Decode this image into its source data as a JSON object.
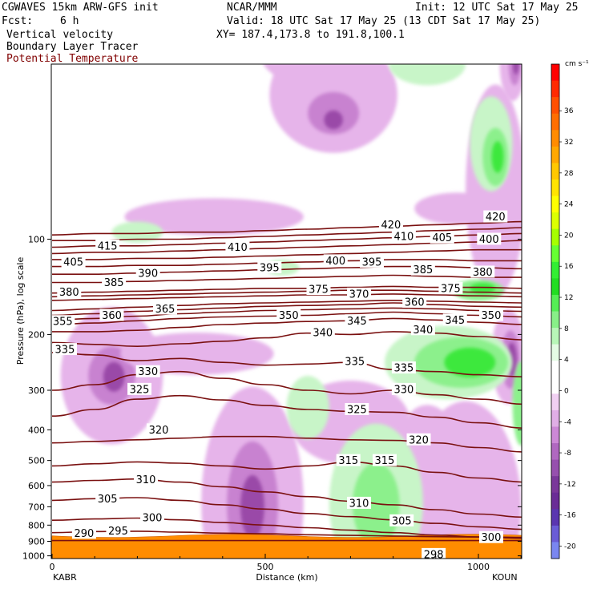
{
  "header": {
    "model": "CGWAVES 15km ARW-GFS init",
    "org": "NCAR/MMM",
    "init": "Init: 12 UTC Sat 17 May 25",
    "fcst_label": "Fcst:",
    "fcst_value": "6 h",
    "valid": "Valid: 18 UTC Sat 17 May 25 (13 CDT Sat 17 May 25)",
    "xy": "XY= 187.4,173.8 to 191.8,100.1",
    "field1": "Vertical velocity",
    "field2": "Boundary Layer Tracer",
    "field3": "Potential Temperature"
  },
  "colors": {
    "theta": "#7a1010",
    "theta_text": "#800000",
    "tracer": "#ff8c00",
    "neg_light": "#e6b4ea",
    "neg_mid": "#c882d0",
    "neg_dark": "#9a4aa8",
    "neg_darkest": "#6e1e86",
    "pos_light": "#c8f5c8",
    "pos_mid": "#8cf08c",
    "pos_dark": "#3ee83e"
  },
  "chart_data": {
    "type": "contour-cross-section",
    "xlabel": "Distance (km)",
    "ylabel": "Pressure (hPa), log scale",
    "xlim": [
      0,
      1110
    ],
    "x_ticks": [
      0,
      500,
      1000
    ],
    "x_end_labels": [
      "KABR",
      "KOUN"
    ],
    "y_ticks": [
      100,
      200,
      300,
      400,
      500,
      600,
      700,
      800,
      900,
      1000
    ],
    "y_tick_labels": [
      "100",
      "200",
      "300",
      "400",
      "500",
      "600",
      "700",
      "800",
      "900",
      "1000"
    ],
    "colorbar": {
      "units": "cm s⁻¹",
      "labels": [
        "36",
        "32",
        "28",
        "24",
        "20",
        "16",
        "12",
        "8",
        "4",
        "0",
        "-4",
        "-8",
        "-12",
        "-16",
        "-20"
      ],
      "segment_colors": [
        "#ff0000",
        "#ff2a00",
        "#ff5000",
        "#ff6e00",
        "#ff8c00",
        "#ffa800",
        "#ffc800",
        "#ffe400",
        "#ffff00",
        "#dcff00",
        "#a6ff00",
        "#66ff33",
        "#33ee33",
        "#22dd22",
        "#55ee55",
        "#88f088",
        "#b8f6b8",
        "#e4fbe4",
        "#ffffff",
        "#ffffff",
        "#f0d0f2",
        "#e0aee6",
        "#cc88d6",
        "#b068c0",
        "#9650ae",
        "#7a389a",
        "#6a2c96",
        "#5a36b0",
        "#6a5cd6",
        "#7a86f0"
      ]
    },
    "theta_labels": [
      {
        "value": "420",
        "x": 795,
        "p": 90
      },
      {
        "value": "420",
        "x": 1040,
        "p": 85
      },
      {
        "value": "415",
        "x": 130,
        "p": 105
      },
      {
        "value": "410",
        "x": 435,
        "p": 106
      },
      {
        "value": "410",
        "x": 825,
        "p": 98
      },
      {
        "value": "405",
        "x": 50,
        "p": 118
      },
      {
        "value": "405",
        "x": 915,
        "p": 99
      },
      {
        "value": "400",
        "x": 665,
        "p": 117
      },
      {
        "value": "400",
        "x": 1025,
        "p": 100
      },
      {
        "value": "395",
        "x": 510,
        "p": 123
      },
      {
        "value": "395",
        "x": 750,
        "p": 118
      },
      {
        "value": "390",
        "x": 225,
        "p": 128
      },
      {
        "value": "385",
        "x": 145,
        "p": 137
      },
      {
        "value": "385",
        "x": 870,
        "p": 125
      },
      {
        "value": "380",
        "x": 40,
        "p": 147
      },
      {
        "value": "380",
        "x": 1010,
        "p": 127
      },
      {
        "value": "375",
        "x": 625,
        "p": 144
      },
      {
        "value": "375",
        "x": 935,
        "p": 143
      },
      {
        "value": "370",
        "x": 720,
        "p": 149
      },
      {
        "value": "365",
        "x": 265,
        "p": 166
      },
      {
        "value": "360",
        "x": 140,
        "p": 174
      },
      {
        "value": "360",
        "x": 850,
        "p": 158
      },
      {
        "value": "355",
        "x": 25,
        "p": 182
      },
      {
        "value": "350",
        "x": 555,
        "p": 174
      },
      {
        "value": "350",
        "x": 1030,
        "p": 174
      },
      {
        "value": "345",
        "x": 715,
        "p": 181
      },
      {
        "value": "345",
        "x": 945,
        "p": 180
      },
      {
        "value": "340",
        "x": 635,
        "p": 197
      },
      {
        "value": "340",
        "x": 870,
        "p": 193
      },
      {
        "value": "335",
        "x": 30,
        "p": 223
      },
      {
        "value": "335",
        "x": 710,
        "p": 243
      },
      {
        "value": "335",
        "x": 825,
        "p": 255
      },
      {
        "value": "330",
        "x": 225,
        "p": 262
      },
      {
        "value": "330",
        "x": 825,
        "p": 298
      },
      {
        "value": "325",
        "x": 205,
        "p": 298
      },
      {
        "value": "325",
        "x": 715,
        "p": 345
      },
      {
        "value": "320",
        "x": 250,
        "p": 400
      },
      {
        "value": "320",
        "x": 860,
        "p": 430
      },
      {
        "value": "315",
        "x": 695,
        "p": 500
      },
      {
        "value": "315",
        "x": 780,
        "p": 500
      },
      {
        "value": "310",
        "x": 220,
        "p": 575
      },
      {
        "value": "310",
        "x": 720,
        "p": 682
      },
      {
        "value": "305",
        "x": 130,
        "p": 660
      },
      {
        "value": "305",
        "x": 820,
        "p": 775
      },
      {
        "value": "300",
        "x": 235,
        "p": 758
      },
      {
        "value": "300",
        "x": 1030,
        "p": 875
      },
      {
        "value": "295",
        "x": 155,
        "p": 835
      },
      {
        "value": "290",
        "x": 75,
        "p": 848
      },
      {
        "value": "298",
        "x": 895,
        "p": 990
      }
    ],
    "theta_series": [
      {
        "value": 290,
        "p": [
          895,
          895,
          895,
          895,
          895,
          895,
          895,
          895,
          895,
          895,
          895,
          895
        ]
      },
      {
        "value": 295,
        "p": [
          845,
          838,
          836,
          842,
          848,
          852,
          858,
          862,
          866,
          870,
          872,
          874
        ]
      },
      {
        "value": 300,
        "p": [
          772,
          765,
          760,
          770,
          785,
          800,
          815,
          830,
          845,
          860,
          872,
          880
        ]
      },
      {
        "value": 305,
        "p": [
          668,
          660,
          655,
          668,
          690,
          712,
          735,
          752,
          770,
          790,
          810,
          825
        ]
      },
      {
        "value": 310,
        "p": [
          585,
          578,
          572,
          585,
          605,
          628,
          650,
          672,
          690,
          715,
          738,
          755
        ]
      },
      {
        "value": 315,
        "p": [
          520,
          512,
          505,
          510,
          520,
          532,
          520,
          505,
          520,
          545,
          568,
          585
        ]
      },
      {
        "value": 320,
        "p": [
          440,
          435,
          430,
          425,
          420,
          420,
          425,
          430,
          432,
          440,
          455,
          470
        ]
      },
      {
        "value": 325,
        "p": [
          362,
          345,
          320,
          312,
          322,
          335,
          345,
          350,
          352,
          365,
          380,
          395
        ]
      },
      {
        "value": 330,
        "p": [
          300,
          288,
          268,
          262,
          275,
          288,
          300,
          308,
          300,
          310,
          320,
          332
        ]
      },
      {
        "value": 335,
        "p": [
          228,
          232,
          242,
          238,
          245,
          250,
          248,
          245,
          258,
          262,
          268,
          272
        ]
      },
      {
        "value": 340,
        "p": [
          212,
          215,
          218,
          214,
          210,
          205,
          198,
          200,
          196,
          198,
          203,
          208
        ]
      },
      {
        "value": 345,
        "p": [
          196,
          196,
          194,
          190,
          186,
          184,
          182,
          181,
          178,
          180,
          183,
          186
        ]
      },
      {
        "value": 350,
        "p": [
          186,
          184,
          181,
          178,
          176,
          175,
          174,
          172,
          170,
          172,
          174,
          176
        ]
      },
      {
        "value": 355,
        "p": [
          180,
          178,
          175,
          172,
          170,
          168,
          167,
          166,
          165,
          166,
          168,
          169
        ]
      },
      {
        "value": 360,
        "p": [
          174,
          172,
          169,
          167,
          165,
          163,
          162,
          161,
          159,
          161,
          163,
          164
        ]
      },
      {
        "value": 365,
        "p": [
          168,
          166,
          164,
          162,
          160,
          159,
          158,
          157,
          156,
          157,
          158,
          159
        ]
      },
      {
        "value": 370,
        "p": [
          156,
          155,
          154,
          153,
          152,
          151,
          150,
          150,
          149,
          150,
          151,
          152
        ]
      },
      {
        "value": 375,
        "p": [
          152,
          151,
          150,
          149,
          148,
          147,
          146,
          145,
          145,
          146,
          147,
          148
        ]
      },
      {
        "value": 380,
        "p": [
          148,
          147,
          146,
          145,
          144,
          143,
          143,
          142,
          141,
          142,
          142,
          143
        ]
      },
      {
        "value": 385,
        "p": [
          137,
          137,
          136,
          135,
          134,
          133,
          132,
          131,
          130,
          131,
          132,
          132
        ]
      },
      {
        "value": 390,
        "p": [
          129,
          129,
          128,
          127,
          126,
          125,
          124,
          123,
          122,
          122,
          123,
          124
        ]
      },
      {
        "value": 395,
        "p": [
          122,
          122,
          121,
          121,
          120,
          119,
          118,
          117,
          116,
          116,
          117,
          117
        ]
      },
      {
        "value": 400,
        "p": [
          116,
          116,
          115,
          115,
          114,
          113,
          112,
          111,
          110,
          109,
          108,
          108
        ]
      },
      {
        "value": 405,
        "p": [
          111,
          110,
          110,
          109,
          108,
          107,
          106,
          105,
          104,
          103,
          102,
          101
        ]
      },
      {
        "value": 410,
        "p": [
          106,
          105,
          105,
          104,
          103,
          102,
          101,
          100,
          99,
          98,
          97,
          96
        ]
      },
      {
        "value": 415,
        "p": [
          101,
          101,
          100,
          100,
          99,
          98,
          97,
          96,
          95,
          94,
          93,
          92
        ]
      },
      {
        "value": 420,
        "p": [
          97,
          96,
          96,
          95,
          95,
          94,
          93,
          92,
          91,
          90,
          89,
          88
        ]
      }
    ],
    "theta_x": [
      0,
      100,
      200,
      300,
      400,
      500,
      600,
      700,
      800,
      900,
      1000,
      1110
    ],
    "w_blobs": [
      {
        "sign": "neg",
        "x": 660,
        "p": 35,
        "rx": 150,
        "ry": 110,
        "level": 1
      },
      {
        "sign": "neg",
        "x": 660,
        "p": 40,
        "rx": 60,
        "ry": 40,
        "level": 2
      },
      {
        "sign": "neg",
        "x": 660,
        "p": 42,
        "rx": 22,
        "ry": 18,
        "level": 3
      },
      {
        "sign": "neg",
        "x": 565,
        "p": 25,
        "rx": 80,
        "ry": 60,
        "level": 1
      },
      {
        "sign": "neg",
        "x": 580,
        "p": 24,
        "rx": 40,
        "ry": 30,
        "level": 2
      },
      {
        "sign": "neg",
        "x": 1080,
        "p": 28,
        "rx": 30,
        "ry": 70,
        "level": 1
      },
      {
        "sign": "neg",
        "x": 1085,
        "p": 28,
        "rx": 14,
        "ry": 40,
        "level": 2
      },
      {
        "sign": "neg",
        "x": 1088,
        "p": 28,
        "rx": 7,
        "ry": 20,
        "level": 3
      },
      {
        "sign": "neg",
        "x": 1040,
        "p": 70,
        "rx": 70,
        "ry": 200,
        "level": 1
      },
      {
        "sign": "neg",
        "x": 380,
        "p": 85,
        "rx": 210,
        "ry": 35,
        "level": 1
      },
      {
        "sign": "neg",
        "x": 950,
        "p": 80,
        "rx": 100,
        "ry": 30,
        "level": 1
      },
      {
        "sign": "neg",
        "x": 140,
        "p": 270,
        "rx": 120,
        "ry": 130,
        "level": 1
      },
      {
        "sign": "neg",
        "x": 140,
        "p": 270,
        "rx": 55,
        "ry": 55,
        "level": 2
      },
      {
        "sign": "neg",
        "x": 145,
        "p": 272,
        "rx": 25,
        "ry": 28,
        "level": 3
      },
      {
        "sign": "neg",
        "x": 470,
        "p": 680,
        "rx": 120,
        "ry": 220,
        "level": 1
      },
      {
        "sign": "neg",
        "x": 470,
        "p": 690,
        "rx": 60,
        "ry": 120,
        "level": 2
      },
      {
        "sign": "neg",
        "x": 470,
        "p": 700,
        "rx": 28,
        "ry": 60,
        "level": 3
      },
      {
        "sign": "neg",
        "x": 1070,
        "p": 235,
        "rx": 40,
        "ry": 90,
        "level": 1
      },
      {
        "sign": "neg",
        "x": 1075,
        "p": 240,
        "rx": 22,
        "ry": 55,
        "level": 2
      },
      {
        "sign": "neg",
        "x": 1078,
        "p": 240,
        "rx": 12,
        "ry": 32,
        "level": 3
      },
      {
        "sign": "neg",
        "x": 970,
        "p": 700,
        "rx": 130,
        "ry": 200,
        "level": 1
      },
      {
        "sign": "neg",
        "x": 340,
        "p": 230,
        "rx": 180,
        "ry": 40,
        "level": 1
      },
      {
        "sign": "neg",
        "x": 700,
        "p": 380,
        "rx": 140,
        "ry": 80,
        "level": 1
      },
      {
        "sign": "neg",
        "x": 880,
        "p": 420,
        "rx": 60,
        "ry": 60,
        "level": 1
      },
      {
        "sign": "pos",
        "x": 1030,
        "p": 50,
        "rx": 50,
        "ry": 90,
        "level": 1
      },
      {
        "sign": "pos",
        "x": 1040,
        "p": 55,
        "rx": 30,
        "ry": 55,
        "level": 2
      },
      {
        "sign": "pos",
        "x": 1045,
        "p": 55,
        "rx": 14,
        "ry": 30,
        "level": 3
      },
      {
        "sign": "pos",
        "x": 130,
        "p": 22,
        "rx": 120,
        "ry": 35,
        "level": 1
      },
      {
        "sign": "pos",
        "x": 880,
        "p": 28,
        "rx": 90,
        "ry": 40,
        "level": 1
      },
      {
        "sign": "pos",
        "x": 200,
        "p": 95,
        "rx": 60,
        "ry": 20,
        "level": 1
      },
      {
        "sign": "pos",
        "x": 930,
        "p": 245,
        "rx": 150,
        "ry": 70,
        "level": 1
      },
      {
        "sign": "pos",
        "x": 960,
        "p": 245,
        "rx": 110,
        "ry": 48,
        "level": 2
      },
      {
        "sign": "pos",
        "x": 980,
        "p": 245,
        "rx": 60,
        "ry": 28,
        "level": 3
      },
      {
        "sign": "pos",
        "x": 1000,
        "p": 145,
        "rx": 60,
        "ry": 20,
        "level": 2
      },
      {
        "sign": "pos",
        "x": 1010,
        "p": 143,
        "rx": 30,
        "ry": 10,
        "level": 3
      },
      {
        "sign": "pos",
        "x": 760,
        "p": 680,
        "rx": 110,
        "ry": 150,
        "level": 1
      },
      {
        "sign": "pos",
        "x": 760,
        "p": 690,
        "rx": 55,
        "ry": 80,
        "level": 2
      },
      {
        "sign": "pos",
        "x": 600,
        "p": 340,
        "rx": 50,
        "ry": 60,
        "level": 1
      },
      {
        "sign": "pos",
        "x": 1100,
        "p": 330,
        "rx": 20,
        "ry": 80,
        "level": 2
      },
      {
        "sign": "pos",
        "x": 540,
        "p": 123,
        "rx": 40,
        "ry": 15,
        "level": 1
      }
    ]
  }
}
